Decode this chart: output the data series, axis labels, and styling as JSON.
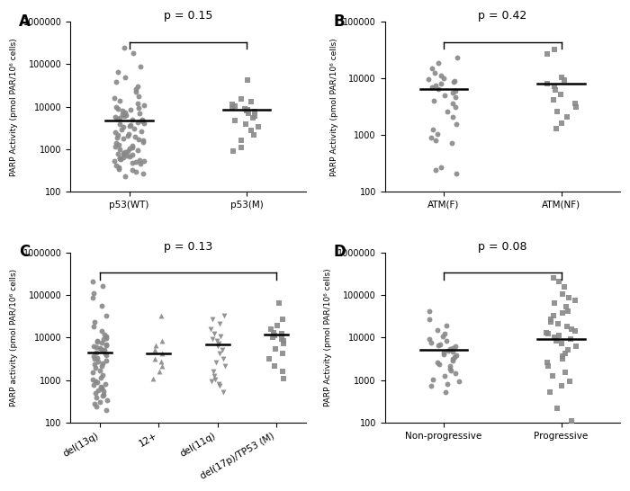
{
  "panel_A": {
    "label": "A",
    "p_value": "p = 0.15",
    "ylabel": "PARP Activity (pmol PAR/10⁶ cells)",
    "groups": [
      "p53(WT)",
      "p53(M)"
    ],
    "markers": [
      "o",
      "s"
    ],
    "medians": [
      4800,
      8500
    ],
    "ylim": [
      100,
      1000000
    ],
    "yticks": [
      100,
      1000,
      10000,
      100000,
      1000000
    ],
    "group1": [
      230,
      270,
      290,
      320,
      350,
      380,
      410,
      450,
      480,
      500,
      520,
      540,
      560,
      580,
      600,
      620,
      650,
      670,
      700,
      730,
      760,
      800,
      840,
      880,
      920,
      960,
      1000,
      1050,
      1100,
      1150,
      1200,
      1300,
      1400,
      1500,
      1600,
      1700,
      1800,
      1900,
      2000,
      2100,
      2200,
      2300,
      2500,
      2700,
      2900,
      3100,
      3300,
      3500,
      3700,
      3900,
      4100,
      4300,
      4500,
      4700,
      4900,
      5100,
      5300,
      5600,
      5900,
      6200,
      6500,
      6800,
      7100,
      7500,
      8000,
      8500,
      9000,
      9500,
      10000,
      11000,
      12000,
      14000,
      16000,
      18000,
      22000,
      26000,
      30000,
      38000,
      50000,
      65000,
      90000,
      180000,
      240000
    ],
    "group2": [
      900,
      1100,
      1600,
      2200,
      2800,
      3400,
      4000,
      4800,
      5500,
      6200,
      7000,
      7600,
      8100,
      8600,
      9100,
      9600,
      10200,
      11500,
      13000,
      15000,
      42000
    ]
  },
  "panel_B": {
    "label": "B",
    "p_value": "p = 0.42",
    "ylabel": "PARP Activity (pmol PAR/10⁶ cells)",
    "groups": [
      "ATM(F)",
      "ATM(NF)"
    ],
    "markers": [
      "o",
      "s"
    ],
    "medians": [
      6500,
      8200
    ],
    "ylim": [
      100,
      100000
    ],
    "yticks": [
      100,
      1000,
      10000,
      100000
    ],
    "group1": [
      210,
      240,
      270,
      720,
      820,
      920,
      1050,
      1250,
      1550,
      2100,
      2600,
      3100,
      3600,
      4100,
      4600,
      5100,
      5600,
      6100,
      6600,
      7100,
      7600,
      8100,
      8600,
      9100,
      9600,
      10200,
      11200,
      12500,
      15000,
      19000,
      23000
    ],
    "group2": [
      1300,
      1600,
      2100,
      2600,
      3100,
      3600,
      4200,
      5200,
      6200,
      7200,
      8200,
      9200,
      10500,
      27000,
      32000
    ]
  },
  "panel_C": {
    "label": "C",
    "p_value": "p = 0.13",
    "ylabel": "PARP activity (pmol PAR/10⁶ cells)",
    "groups": [
      "del(13q)",
      "12+",
      "del(11q)",
      "del(17p)/TP53 (M)"
    ],
    "markers": [
      "o",
      "^",
      "v",
      "s"
    ],
    "medians": [
      4500,
      4200,
      6800,
      11500
    ],
    "ylim": [
      100,
      1000000
    ],
    "yticks": [
      100,
      1000,
      10000,
      100000,
      1000000
    ],
    "group1": [
      200,
      240,
      270,
      300,
      340,
      380,
      420,
      460,
      500,
      540,
      580,
      620,
      660,
      700,
      750,
      800,
      870,
      950,
      1050,
      1150,
      1300,
      1500,
      1700,
      1900,
      2100,
      2300,
      2500,
      2700,
      2900,
      3100,
      3300,
      3600,
      3900,
      4200,
      4500,
      4800,
      5100,
      5400,
      5700,
      6000,
      6300,
      6600,
      7000,
      7500,
      8000,
      8500,
      9000,
      9500,
      10500,
      12000,
      14000,
      18000,
      23000,
      32000,
      55000,
      85000,
      110000,
      160000,
      210000
    ],
    "group2": [
      1100,
      1600,
      2100,
      2700,
      3200,
      4200,
      5200,
      6500,
      8500,
      32000
    ],
    "group3": [
      520,
      720,
      820,
      920,
      1050,
      1250,
      1600,
      2100,
      2600,
      3200,
      4200,
      5200,
      6200,
      7200,
      8200,
      9200,
      10500,
      12500,
      16000,
      21000,
      27000,
      33000
    ],
    "group4": [
      1100,
      1600,
      2100,
      3200,
      4200,
      5500,
      7200,
      8200,
      9200,
      10200,
      11200,
      12200,
      13200,
      15500,
      19000,
      27000,
      65000
    ]
  },
  "panel_D": {
    "label": "D",
    "p_value": "p = 0.08",
    "ylabel": "PARP Activity (pmol PAR/10⁶ cells)",
    "groups": [
      "Non-progressive",
      "Progressive"
    ],
    "markers": [
      "o",
      "s"
    ],
    "medians": [
      5200,
      9200
    ],
    "ylim": [
      100,
      1000000
    ],
    "yticks": [
      100,
      1000,
      10000,
      100000,
      1000000
    ],
    "group1": [
      520,
      720,
      820,
      920,
      1050,
      1250,
      1450,
      1650,
      1850,
      2100,
      2350,
      2600,
      2900,
      3200,
      3500,
      3800,
      4100,
      4400,
      4700,
      5000,
      5300,
      5700,
      6100,
      6500,
      7000,
      7500,
      8200,
      9200,
      10500,
      12500,
      15000,
      19000,
      27000,
      42000
    ],
    "group2": [
      110,
      220,
      520,
      720,
      920,
      1250,
      1550,
      2100,
      2600,
      3100,
      3600,
      4200,
      5200,
      6200,
      7200,
      8200,
      9200,
      10200,
      11200,
      12200,
      13200,
      14200,
      15500,
      18500,
      21000,
      23000,
      27000,
      32000,
      37000,
      42000,
      52000,
      65000,
      75000,
      85000,
      105000,
      155000,
      205000,
      255000
    ]
  },
  "dot_color": "#888888",
  "marker_size": 18,
  "alpha": 0.9
}
